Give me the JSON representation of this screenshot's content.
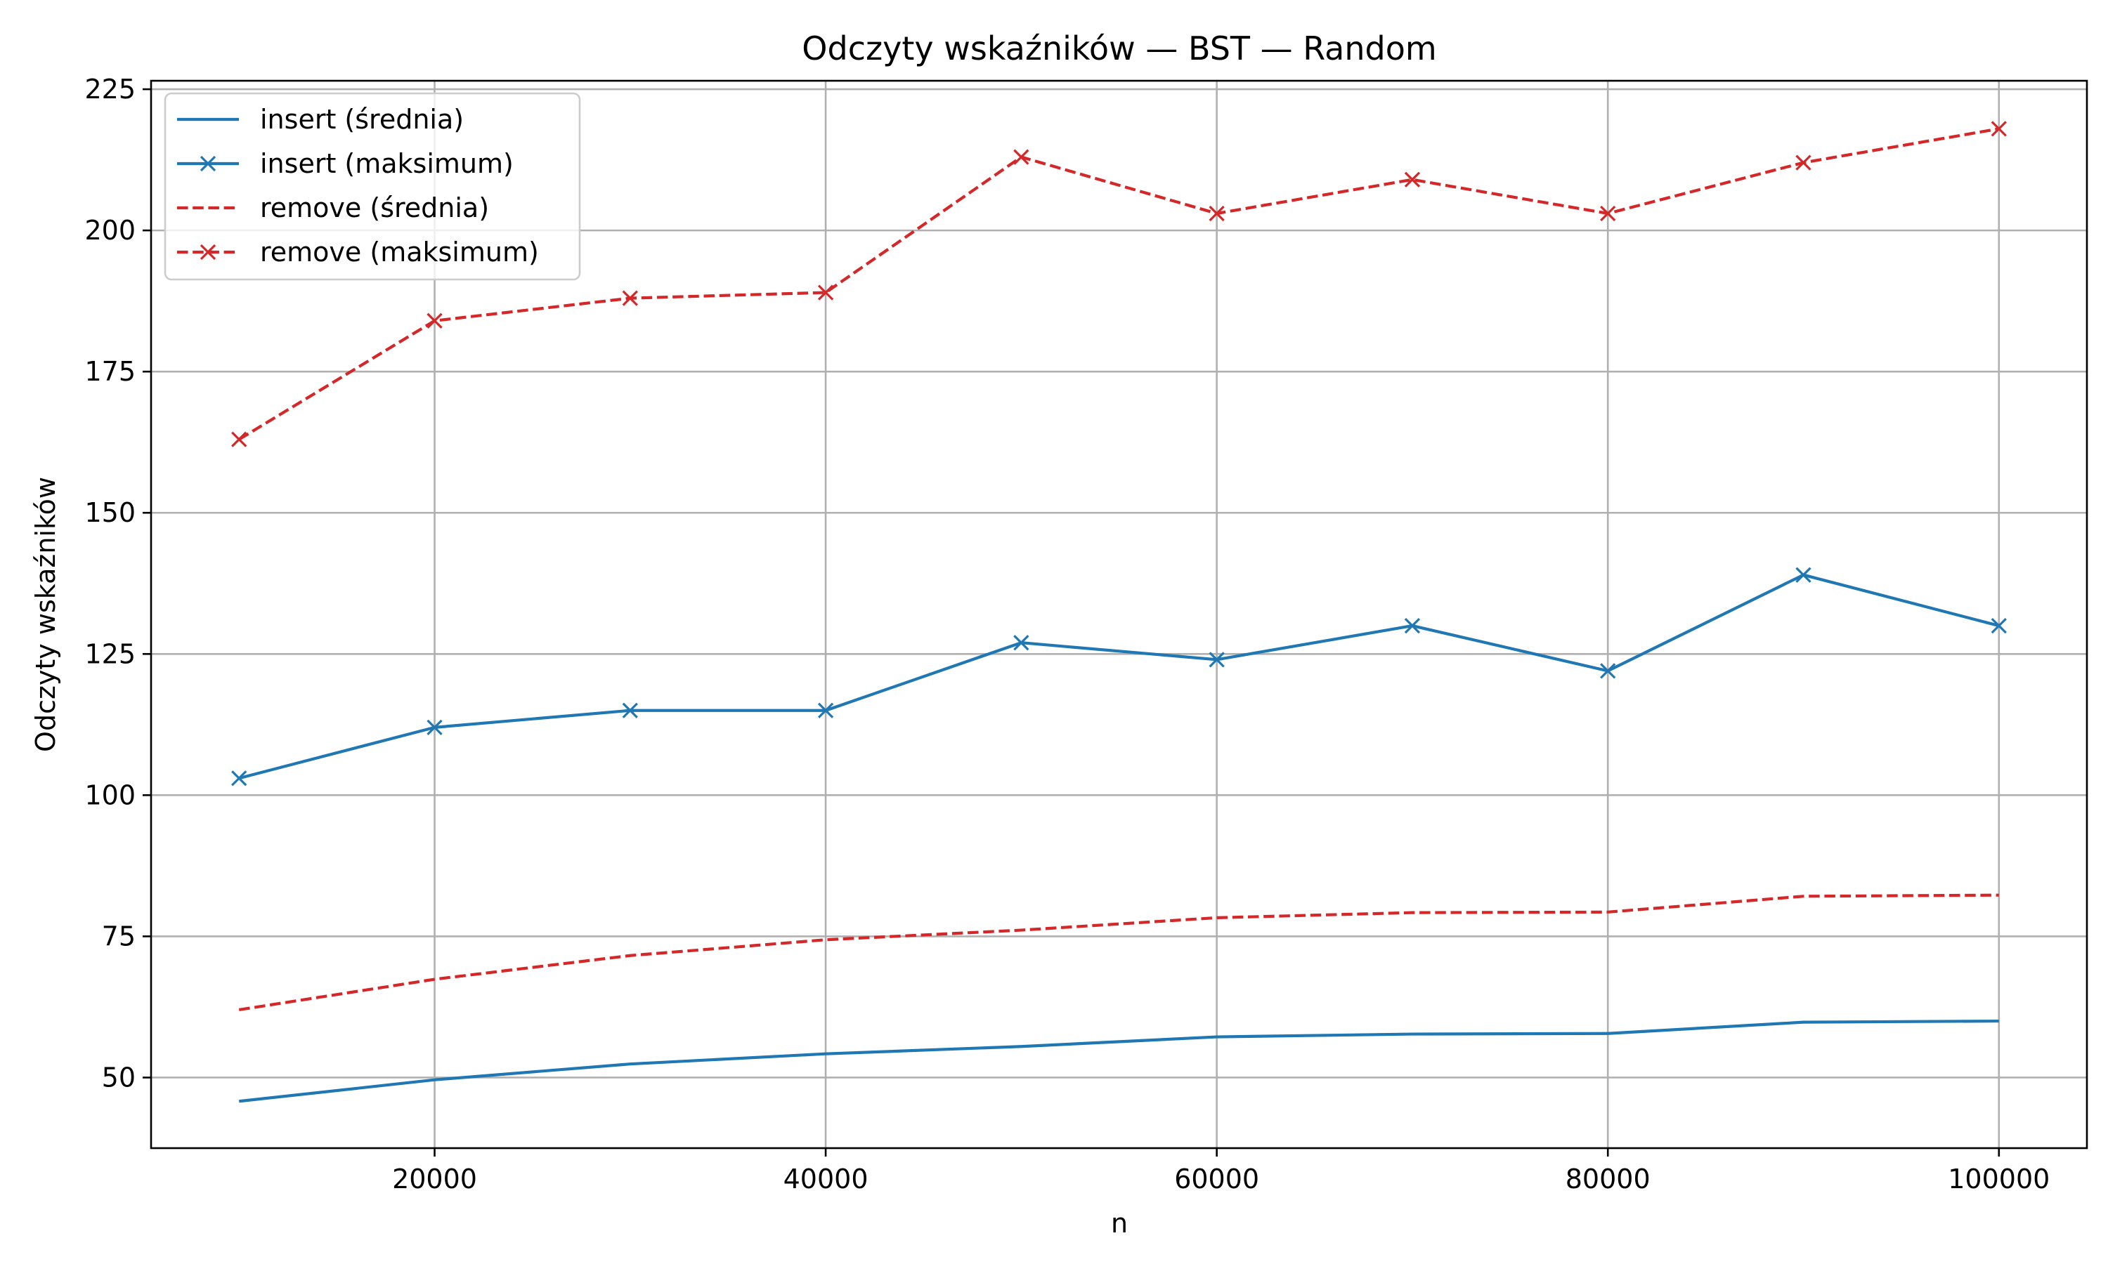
{
  "chart_data": {
    "type": "line",
    "title": "Odczyty wskaźników — BST — Random",
    "xlabel": "n",
    "ylabel": "Odczyty wskaźników",
    "x": [
      10000,
      20000,
      30000,
      40000,
      50000,
      60000,
      70000,
      80000,
      90000,
      100000
    ],
    "xlim": [
      5500,
      104500
    ],
    "ylim": [
      37.5,
      226.5
    ],
    "xticks": [
      20000,
      40000,
      60000,
      80000,
      100000
    ],
    "xtick_labels": [
      "20000",
      "40000",
      "60000",
      "80000",
      "100000"
    ],
    "yticks": [
      50,
      75,
      100,
      125,
      150,
      175,
      200,
      225
    ],
    "ytick_labels": [
      "50",
      "75",
      "100",
      "125",
      "150",
      "175",
      "200",
      "225"
    ],
    "grid": true,
    "legend_position": "top-left",
    "series": [
      {
        "name": "insert (średnia)",
        "color": "#1f77b4",
        "linestyle": "solid",
        "marker": "none",
        "values": [
          45.8,
          49.6,
          52.4,
          54.2,
          55.5,
          57.2,
          57.7,
          57.8,
          59.8,
          60.0
        ]
      },
      {
        "name": "insert (maksimum)",
        "color": "#1f77b4",
        "linestyle": "solid",
        "marker": "x",
        "values": [
          103,
          112,
          115,
          115,
          127,
          124,
          130,
          122,
          139,
          130
        ]
      },
      {
        "name": "remove (średnia)",
        "color": "#d62728",
        "linestyle": "dashed",
        "marker": "none",
        "values": [
          62.0,
          67.4,
          71.6,
          74.4,
          76.1,
          78.3,
          79.2,
          79.3,
          82.1,
          82.3
        ]
      },
      {
        "name": "remove (maksimum)",
        "color": "#d62728",
        "linestyle": "dashed",
        "marker": "x",
        "values": [
          163,
          184,
          188,
          189,
          213,
          203,
          209,
          203,
          212,
          218
        ]
      }
    ]
  }
}
